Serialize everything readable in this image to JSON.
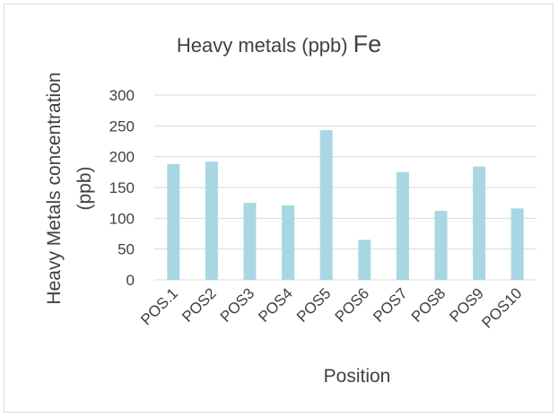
{
  "chart_data": {
    "type": "bar",
    "title": "Heavy metals (ppb)",
    "title_element": "Fe",
    "xlabel": "Position",
    "ylabel_line1": "Heavy Metals concentration",
    "ylabel_line2": "(ppb)",
    "categories": [
      "POS.1",
      "POS2",
      "POS3",
      "POS4",
      "POS5",
      "POS6",
      "POS7",
      "POS8",
      "POS9",
      "POS10"
    ],
    "values": [
      188,
      192,
      125,
      121,
      243,
      65,
      175,
      112,
      184,
      116
    ],
    "ylim": [
      0,
      300
    ],
    "yticks": [
      0,
      50,
      100,
      150,
      200,
      250,
      300
    ],
    "grid": true,
    "legend": "none",
    "bar_color": "#a8d7e3",
    "grid_color": "#d9d9d9"
  }
}
